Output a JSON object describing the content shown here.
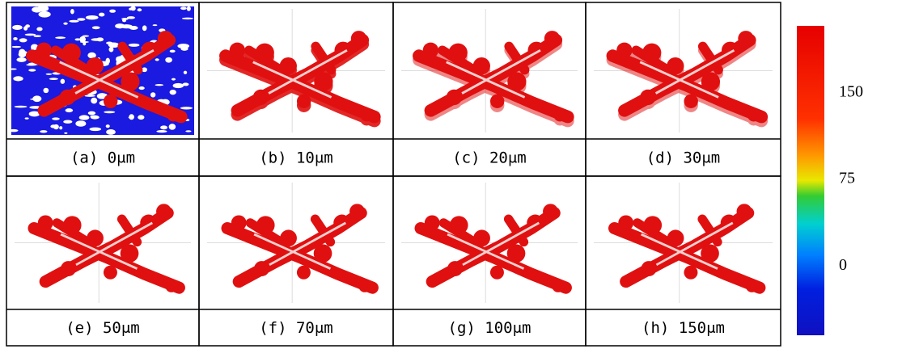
{
  "panels": [
    "(a) 0μm",
    "(b) 10μm",
    "(c) 20μm",
    "(d) 30μm",
    "(e) 50μm",
    "(f) 70μm",
    "(g) 100μm",
    "(h) 150μm"
  ],
  "colorbar": {
    "range": [
      -60,
      208
    ],
    "ticks": [
      150,
      75,
      0
    ]
  }
}
